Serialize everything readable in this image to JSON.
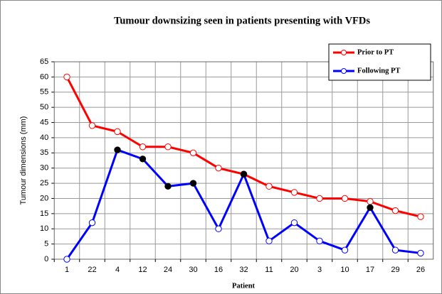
{
  "chart_data": {
    "type": "line",
    "title": "Tumour downsizing seen in patients presenting with VFDs",
    "xlabel": "Patient",
    "ylabel": "Tumour dimensions  (mm)",
    "categories": [
      "1",
      "22",
      "4",
      "12",
      "24",
      "30",
      "16",
      "32",
      "11",
      "20",
      "3",
      "10",
      "17",
      "29",
      "26"
    ],
    "series": [
      {
        "name": "Prior to PT",
        "color": "#ff0000",
        "values": [
          60,
          44,
          42,
          37,
          37,
          35,
          30,
          28,
          24,
          22,
          20,
          20,
          19,
          16,
          14
        ]
      },
      {
        "name": "Following PT",
        "color": "#0000ff",
        "values": [
          0,
          12,
          36,
          33,
          24,
          25,
          10,
          28,
          6,
          12,
          6,
          3,
          17,
          3,
          2
        ],
        "marker_colors": [
          "#ffffff",
          "#ffffff",
          "#000000",
          "#000000",
          "#000000",
          "#000000",
          "#ffffff",
          "#000000",
          "#ffffff",
          "#ffffff",
          "#ffffff",
          "#ffffff",
          "#000000",
          "#ffffff",
          "#ffffff"
        ]
      }
    ],
    "ylim": [
      0,
      65
    ],
    "yticks": [
      0,
      5,
      10,
      15,
      20,
      25,
      30,
      35,
      40,
      45,
      50,
      55,
      60,
      65
    ],
    "grid": true,
    "legend": "upper right"
  }
}
